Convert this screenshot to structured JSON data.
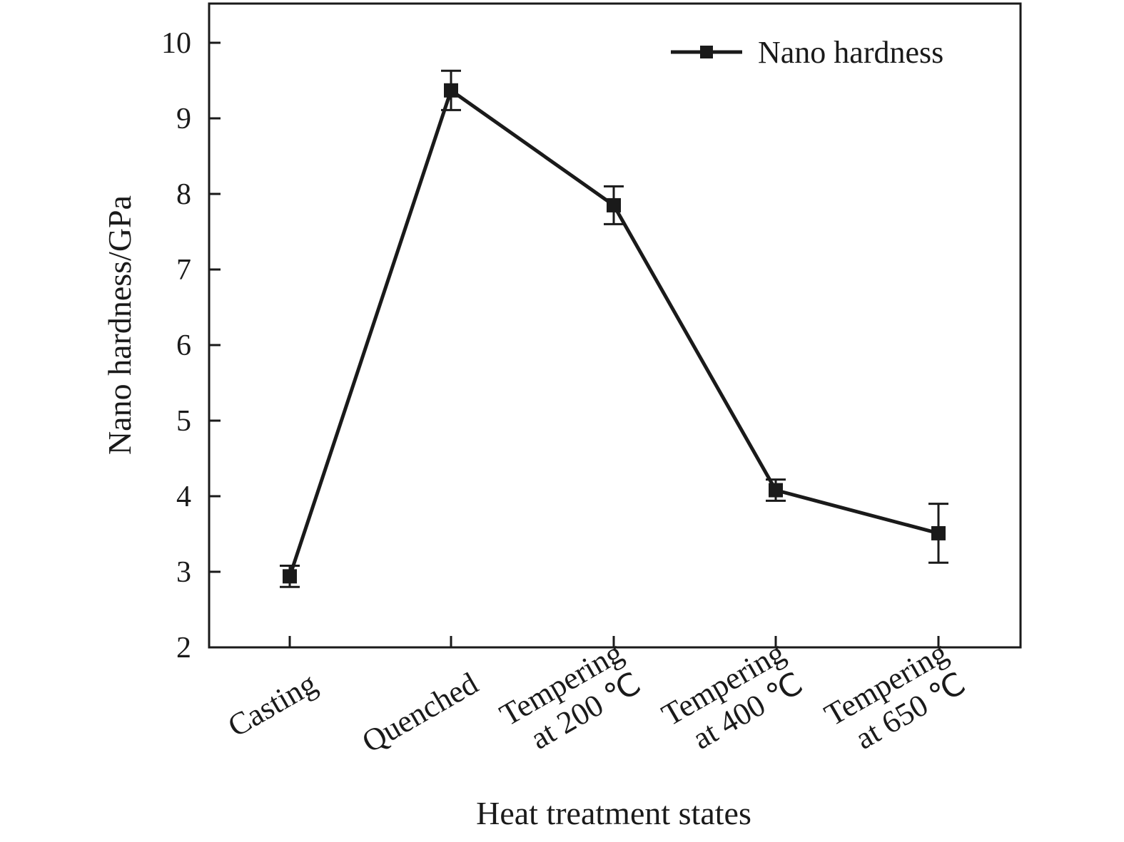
{
  "chart_data": {
    "type": "line",
    "title": "",
    "xlabel": "Heat treatment states",
    "ylabel": "Nano hardness/GPa",
    "ylim": [
      2,
      10.5
    ],
    "yticks": [
      "2",
      "3",
      "4",
      "5",
      "6",
      "7",
      "8",
      "9",
      "10"
    ],
    "categories": [
      [
        "Casting"
      ],
      [
        "Quenched"
      ],
      [
        "Tempering",
        "at 200 ℃"
      ],
      [
        "Tempering",
        "at 400 ℃"
      ],
      [
        "Tempering",
        "at 650 ℃"
      ]
    ],
    "series": [
      {
        "name": "Nano hardness",
        "values": [
          2.94,
          9.37,
          7.85,
          4.08,
          3.51
        ],
        "errors": [
          0.14,
          0.26,
          0.25,
          0.14,
          0.39
        ]
      }
    ],
    "grid": false,
    "legend_position": "top-right",
    "colors": {
      "line": "#1a1a1a",
      "axis": "#1a1a1a"
    }
  }
}
